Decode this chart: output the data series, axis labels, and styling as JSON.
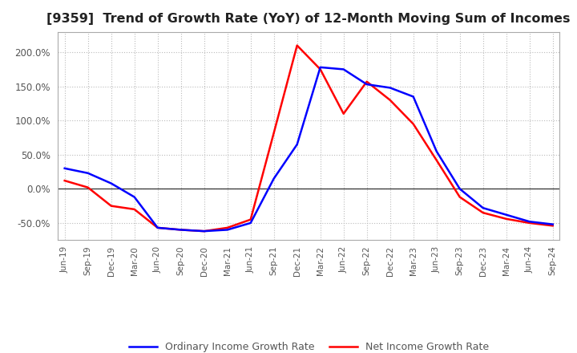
{
  "title": "[9359]  Trend of Growth Rate (YoY) of 12-Month Moving Sum of Incomes",
  "title_fontsize": 11.5,
  "ylim": [
    -75,
    230
  ],
  "yticks": [
    -50,
    0,
    50,
    100,
    150,
    200
  ],
  "ytick_labels": [
    "-50.0%",
    "0.0%",
    "50.0%",
    "100.0%",
    "150.0%",
    "200.0%"
  ],
  "background_color": "#ffffff",
  "plot_bg_color": "#ffffff",
  "grid_color": "#bbbbbb",
  "legend_labels": [
    "Ordinary Income Growth Rate",
    "Net Income Growth Rate"
  ],
  "legend_colors": [
    "#0000ff",
    "#ff0000"
  ],
  "x_labels": [
    "Jun-19",
    "Sep-19",
    "Dec-19",
    "Mar-20",
    "Jun-20",
    "Sep-20",
    "Dec-20",
    "Mar-21",
    "Jun-21",
    "Sep-21",
    "Dec-21",
    "Mar-22",
    "Jun-22",
    "Sep-22",
    "Dec-22",
    "Mar-23",
    "Jun-23",
    "Sep-23",
    "Dec-23",
    "Mar-24",
    "Jun-24",
    "Sep-24"
  ],
  "ordinary_income": [
    30,
    23,
    8,
    -12,
    -57,
    -60,
    -62,
    -60,
    -50,
    15,
    65,
    178,
    175,
    153,
    148,
    135,
    55,
    0,
    -28,
    -38,
    -48,
    -52
  ],
  "net_income": [
    12,
    2,
    -25,
    -30,
    -57,
    -60,
    -62,
    -57,
    -45,
    82,
    210,
    175,
    110,
    157,
    130,
    95,
    42,
    -12,
    -35,
    -44,
    -50,
    -54
  ]
}
